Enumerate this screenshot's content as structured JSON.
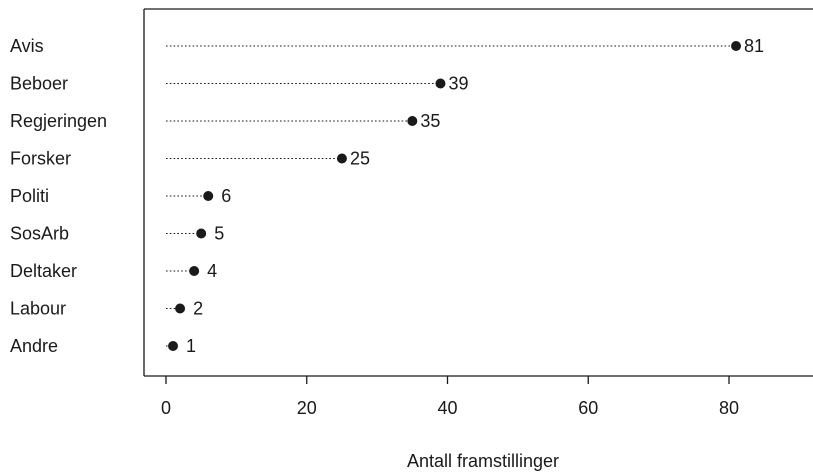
{
  "chart_data": {
    "type": "dot",
    "title": "",
    "xlabel": "Antall framstillinger",
    "ylabel": "",
    "xlim": [
      0,
      90
    ],
    "xticks": [
      0,
      20,
      40,
      60,
      80
    ],
    "grid": false,
    "series": [
      {
        "categories": [
          "Avis",
          "Beboer",
          "Regjeringen",
          "Forsker",
          "Politi",
          "SosArb",
          "Deltaker",
          "Labour",
          "Andre"
        ],
        "values": [
          81,
          39,
          35,
          25,
          6,
          5,
          4,
          2,
          1
        ],
        "labels": [
          "81",
          "39",
          "35",
          "25",
          "6",
          "5",
          "4",
          "2",
          "1"
        ]
      }
    ],
    "colors": {
      "marker": "#1a1a1a",
      "axis": "#1a1a1a"
    }
  }
}
